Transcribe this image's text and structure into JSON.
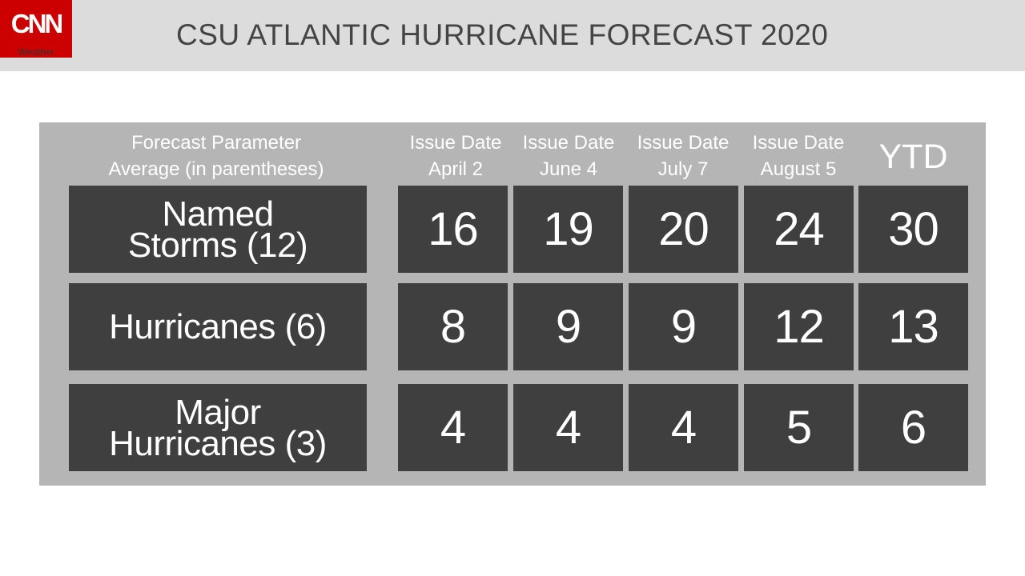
{
  "logo": {
    "brand": "CNN",
    "sub": "Weather"
  },
  "title": "CSU ATLANTIC HURRICANE FORECAST 2020",
  "chart_data": {
    "type": "table",
    "title": "CSU ATLANTIC HURRICANE FORECAST 2020",
    "param_header": [
      "Forecast Parameter",
      "Average (in parentheses)"
    ],
    "columns": [
      {
        "line1": "Issue Date",
        "line2": "April 2"
      },
      {
        "line1": "Issue Date",
        "line2": "June 4"
      },
      {
        "line1": "Issue Date",
        "line2": "July 7"
      },
      {
        "line1": "Issue Date",
        "line2": "August 5"
      },
      {
        "line1": "YTD",
        "line2": ""
      }
    ],
    "rows": [
      {
        "label": [
          "Named",
          "Storms (12)"
        ],
        "values": [
          16,
          19,
          20,
          24,
          30
        ]
      },
      {
        "label": [
          "Hurricanes (6)"
        ],
        "values": [
          8,
          9,
          9,
          12,
          13
        ]
      },
      {
        "label": [
          "Major",
          "Hurricanes (3)"
        ],
        "values": [
          4,
          4,
          4,
          5,
          6
        ]
      }
    ]
  }
}
